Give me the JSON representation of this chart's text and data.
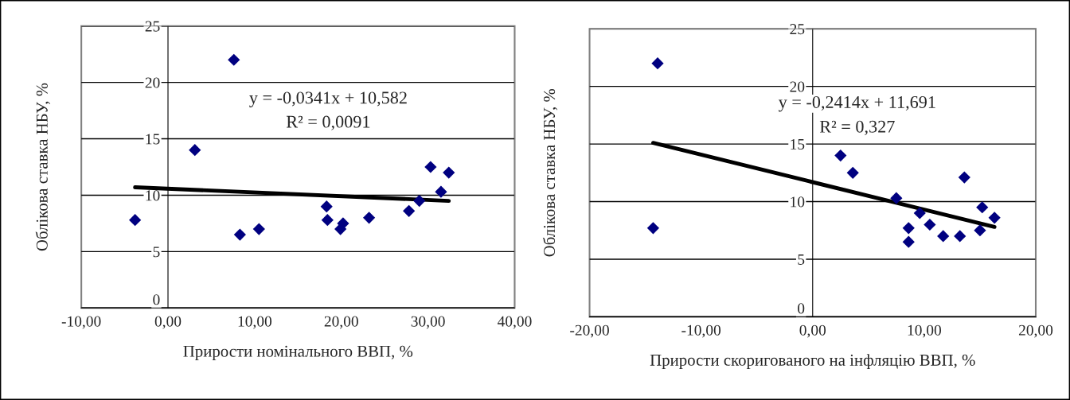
{
  "chart_data": [
    {
      "type": "scatter",
      "xlabel": "Прирости номінального ВВП, %",
      "ylabel": "Облікова ставка НБУ, %",
      "annotations": [
        "y = -0,0341x + 10,582",
        "R² = 0,0091"
      ],
      "xlim": [
        -10,
        40
      ],
      "xticks": [
        {
          "value": -10,
          "label": "-10,00"
        },
        {
          "value": 0,
          "label": "0,00"
        },
        {
          "value": 10,
          "label": "10,00"
        },
        {
          "value": 20,
          "label": "20,00"
        },
        {
          "value": 30,
          "label": "30,00"
        },
        {
          "value": 40,
          "label": "40,00"
        }
      ],
      "ylim": [
        0,
        25
      ],
      "yticks": [
        0,
        5,
        10,
        15,
        20,
        25
      ],
      "grid": "y",
      "legend": false,
      "series": [
        {
          "marker": "diamond",
          "color": "#000080",
          "x": [
            -3.8,
            3.1,
            7.6,
            8.3,
            10.5,
            18.3,
            18.4,
            19.9,
            20.2,
            23.2,
            27.8,
            29.0,
            30.3,
            31.5,
            32.4
          ],
          "values": [
            7.8,
            14.0,
            22.0,
            6.5,
            7.0,
            9.0,
            7.8,
            7.0,
            7.5,
            8.0,
            8.6,
            9.5,
            12.5,
            10.3,
            12.0
          ]
        },
        {
          "type": "line",
          "marker": "none",
          "color": "#000000",
          "x": [
            -3.8,
            32.4
          ],
          "values": [
            10.7,
            9.5
          ]
        }
      ]
    },
    {
      "type": "scatter",
      "xlabel": "Прирости скоригованого на інфляцію ВВП, %",
      "ylabel": "Облікова ставка НБУ, %",
      "annotations": [
        "y = -0,2414x + 11,691",
        "R² = 0,327"
      ],
      "xlim": [
        -20,
        20
      ],
      "xticks": [
        {
          "value": -20,
          "label": "-20,00"
        },
        {
          "value": -10,
          "label": "-10,00"
        },
        {
          "value": 0,
          "label": "0,00"
        },
        {
          "value": 10,
          "label": "10,00"
        },
        {
          "value": 20,
          "label": "20,00"
        }
      ],
      "ylim": [
        0,
        25
      ],
      "yticks": [
        0,
        5,
        10,
        15,
        20,
        25
      ],
      "grid": "y",
      "legend": false,
      "series": [
        {
          "marker": "diamond",
          "color": "#000080",
          "x": [
            -13.9,
            -14.3,
            2.5,
            3.6,
            7.5,
            9.6,
            8.6,
            8.6,
            10.5,
            11.7,
            13.2,
            13.6,
            15.0,
            15.2,
            16.3
          ],
          "values": [
            22.0,
            7.7,
            14.0,
            12.5,
            10.3,
            9.0,
            7.7,
            6.5,
            8.0,
            7.0,
            7.0,
            12.1,
            7.5,
            9.5,
            8.6
          ]
        },
        {
          "type": "line",
          "marker": "none",
          "color": "#000000",
          "x": [
            -14.3,
            16.3
          ],
          "values": [
            15.1,
            7.8
          ]
        }
      ]
    }
  ]
}
